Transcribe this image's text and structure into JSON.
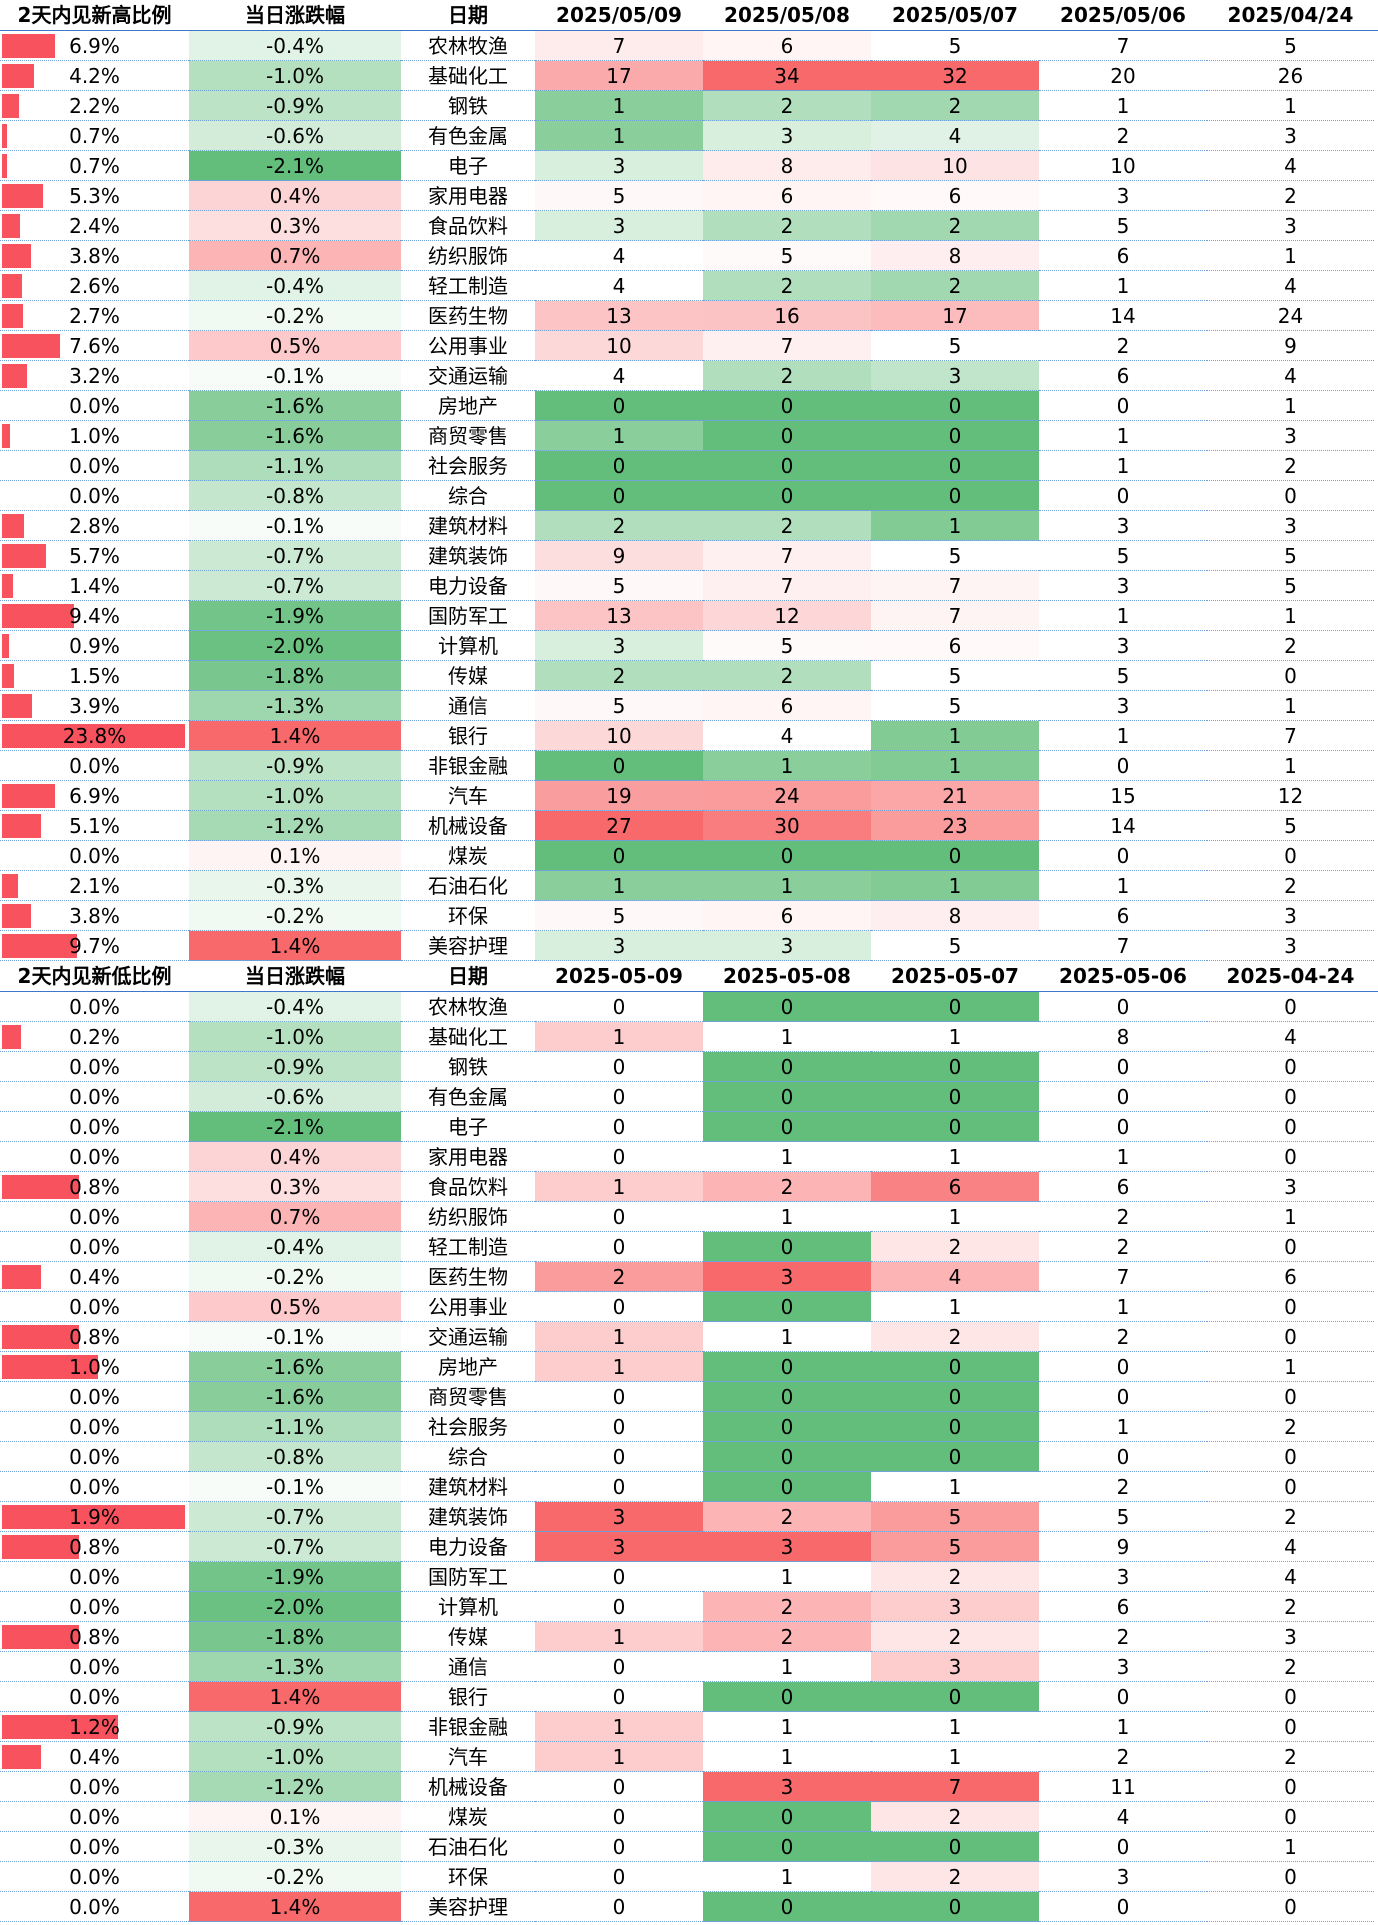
{
  "high": {
    "headers": [
      "2天内见新高比例",
      "当日涨跌幅",
      "日期",
      "2025/05/09",
      "2025/05/08",
      "2025/05/07",
      "2025/05/06",
      "2025/04/24"
    ],
    "rows": [
      [
        "6.9%",
        "-0.4%",
        "农林牧渔",
        "7",
        "6",
        "5",
        "7",
        "5"
      ],
      [
        "4.2%",
        "-1.0%",
        "基础化工",
        "17",
        "34",
        "32",
        "20",
        "26"
      ],
      [
        "2.2%",
        "-0.9%",
        "钢铁",
        "1",
        "2",
        "2",
        "1",
        "1"
      ],
      [
        "0.7%",
        "-0.6%",
        "有色金属",
        "1",
        "3",
        "4",
        "2",
        "3"
      ],
      [
        "0.7%",
        "-2.1%",
        "电子",
        "3",
        "8",
        "10",
        "10",
        "4"
      ],
      [
        "5.3%",
        "0.4%",
        "家用电器",
        "5",
        "6",
        "6",
        "3",
        "2"
      ],
      [
        "2.4%",
        "0.3%",
        "食品饮料",
        "3",
        "2",
        "2",
        "5",
        "3"
      ],
      [
        "3.8%",
        "0.7%",
        "纺织服饰",
        "4",
        "5",
        "8",
        "6",
        "1"
      ],
      [
        "2.6%",
        "-0.4%",
        "轻工制造",
        "4",
        "2",
        "2",
        "1",
        "4"
      ],
      [
        "2.7%",
        "-0.2%",
        "医药生物",
        "13",
        "16",
        "17",
        "14",
        "24"
      ],
      [
        "7.6%",
        "0.5%",
        "公用事业",
        "10",
        "7",
        "5",
        "2",
        "9"
      ],
      [
        "3.2%",
        "-0.1%",
        "交通运输",
        "4",
        "2",
        "3",
        "6",
        "4"
      ],
      [
        "0.0%",
        "-1.6%",
        "房地产",
        "0",
        "0",
        "0",
        "0",
        "1"
      ],
      [
        "1.0%",
        "-1.6%",
        "商贸零售",
        "1",
        "0",
        "0",
        "1",
        "3"
      ],
      [
        "0.0%",
        "-1.1%",
        "社会服务",
        "0",
        "0",
        "0",
        "1",
        "2"
      ],
      [
        "0.0%",
        "-0.8%",
        "综合",
        "0",
        "0",
        "0",
        "0",
        "0"
      ],
      [
        "2.8%",
        "-0.1%",
        "建筑材料",
        "2",
        "2",
        "1",
        "3",
        "3"
      ],
      [
        "5.7%",
        "-0.7%",
        "建筑装饰",
        "9",
        "7",
        "5",
        "5",
        "5"
      ],
      [
        "1.4%",
        "-0.7%",
        "电力设备",
        "5",
        "7",
        "7",
        "3",
        "5"
      ],
      [
        "9.4%",
        "-1.9%",
        "国防军工",
        "13",
        "12",
        "7",
        "1",
        "1"
      ],
      [
        "0.9%",
        "-2.0%",
        "计算机",
        "3",
        "5",
        "6",
        "3",
        "2"
      ],
      [
        "1.5%",
        "-1.8%",
        "传媒",
        "2",
        "2",
        "5",
        "5",
        "0"
      ],
      [
        "3.9%",
        "-1.3%",
        "通信",
        "5",
        "6",
        "5",
        "3",
        "1"
      ],
      [
        "23.8%",
        "1.4%",
        "银行",
        "10",
        "4",
        "1",
        "1",
        "7"
      ],
      [
        "0.0%",
        "-0.9%",
        "非银金融",
        "0",
        "1",
        "1",
        "0",
        "1"
      ],
      [
        "6.9%",
        "-1.0%",
        "汽车",
        "19",
        "24",
        "21",
        "15",
        "12"
      ],
      [
        "5.1%",
        "-1.2%",
        "机械设备",
        "27",
        "30",
        "23",
        "14",
        "5"
      ],
      [
        "0.0%",
        "0.1%",
        "煤炭",
        "0",
        "0",
        "0",
        "0",
        "0"
      ],
      [
        "2.1%",
        "-0.3%",
        "石油石化",
        "1",
        "1",
        "1",
        "1",
        "2"
      ],
      [
        "3.8%",
        "-0.2%",
        "环保",
        "5",
        "6",
        "8",
        "6",
        "3"
      ],
      [
        "9.7%",
        "1.4%",
        "美容护理",
        "3",
        "3",
        "5",
        "7",
        "3"
      ]
    ]
  },
  "low": {
    "headers": [
      "2天内见新低比例",
      "当日涨跌幅",
      "日期",
      "2025-05-09",
      "2025-05-08",
      "2025-05-07",
      "2025-05-06",
      "2025-04-24"
    ],
    "rows": [
      [
        "0.0%",
        "-0.4%",
        "农林牧渔",
        "0",
        "0",
        "0",
        "0",
        "0"
      ],
      [
        "0.2%",
        "-1.0%",
        "基础化工",
        "1",
        "1",
        "1",
        "8",
        "4"
      ],
      [
        "0.0%",
        "-0.9%",
        "钢铁",
        "0",
        "0",
        "0",
        "0",
        "0"
      ],
      [
        "0.0%",
        "-0.6%",
        "有色金属",
        "0",
        "0",
        "0",
        "0",
        "0"
      ],
      [
        "0.0%",
        "-2.1%",
        "电子",
        "0",
        "0",
        "0",
        "0",
        "0"
      ],
      [
        "0.0%",
        "0.4%",
        "家用电器",
        "0",
        "1",
        "1",
        "1",
        "0"
      ],
      [
        "0.8%",
        "0.3%",
        "食品饮料",
        "1",
        "2",
        "6",
        "6",
        "3"
      ],
      [
        "0.0%",
        "0.7%",
        "纺织服饰",
        "0",
        "1",
        "1",
        "2",
        "1"
      ],
      [
        "0.0%",
        "-0.4%",
        "轻工制造",
        "0",
        "0",
        "2",
        "2",
        "0"
      ],
      [
        "0.4%",
        "-0.2%",
        "医药生物",
        "2",
        "3",
        "4",
        "7",
        "6"
      ],
      [
        "0.0%",
        "0.5%",
        "公用事业",
        "0",
        "0",
        "1",
        "1",
        "0"
      ],
      [
        "0.8%",
        "-0.1%",
        "交通运输",
        "1",
        "1",
        "2",
        "2",
        "0"
      ],
      [
        "1.0%",
        "-1.6%",
        "房地产",
        "1",
        "0",
        "0",
        "0",
        "1"
      ],
      [
        "0.0%",
        "-1.6%",
        "商贸零售",
        "0",
        "0",
        "0",
        "0",
        "0"
      ],
      [
        "0.0%",
        "-1.1%",
        "社会服务",
        "0",
        "0",
        "0",
        "1",
        "2"
      ],
      [
        "0.0%",
        "-0.8%",
        "综合",
        "0",
        "0",
        "0",
        "0",
        "0"
      ],
      [
        "0.0%",
        "-0.1%",
        "建筑材料",
        "0",
        "0",
        "1",
        "2",
        "0"
      ],
      [
        "1.9%",
        "-0.7%",
        "建筑装饰",
        "3",
        "2",
        "5",
        "5",
        "2"
      ],
      [
        "0.8%",
        "-0.7%",
        "电力设备",
        "3",
        "3",
        "5",
        "9",
        "4"
      ],
      [
        "0.0%",
        "-1.9%",
        "国防军工",
        "0",
        "1",
        "2",
        "3",
        "4"
      ],
      [
        "0.0%",
        "-2.0%",
        "计算机",
        "0",
        "2",
        "3",
        "6",
        "2"
      ],
      [
        "0.8%",
        "-1.8%",
        "传媒",
        "1",
        "2",
        "2",
        "2",
        "3"
      ],
      [
        "0.0%",
        "-1.3%",
        "通信",
        "0",
        "1",
        "3",
        "3",
        "2"
      ],
      [
        "0.0%",
        "1.4%",
        "银行",
        "0",
        "0",
        "0",
        "0",
        "0"
      ],
      [
        "1.2%",
        "-0.9%",
        "非银金融",
        "1",
        "1",
        "1",
        "1",
        "0"
      ],
      [
        "0.4%",
        "-1.0%",
        "汽车",
        "1",
        "1",
        "1",
        "2",
        "2"
      ],
      [
        "0.0%",
        "-1.2%",
        "机械设备",
        "0",
        "3",
        "7",
        "11",
        "0"
      ],
      [
        "0.0%",
        "0.1%",
        "煤炭",
        "0",
        "0",
        "2",
        "4",
        "0"
      ],
      [
        "0.0%",
        "-0.3%",
        "石油石化",
        "0",
        "0",
        "0",
        "0",
        "1"
      ],
      [
        "0.0%",
        "-0.2%",
        "环保",
        "0",
        "1",
        "2",
        "3",
        "0"
      ],
      [
        "0.0%",
        "1.4%",
        "美容护理",
        "0",
        "0",
        "0",
        "0",
        "0"
      ]
    ]
  },
  "colors": {
    "bar": "#f8525e",
    "red_strong": "#f8696b",
    "green_strong": "#63be7b",
    "white": "#ffffff",
    "grid": "#6fa3d8"
  }
}
